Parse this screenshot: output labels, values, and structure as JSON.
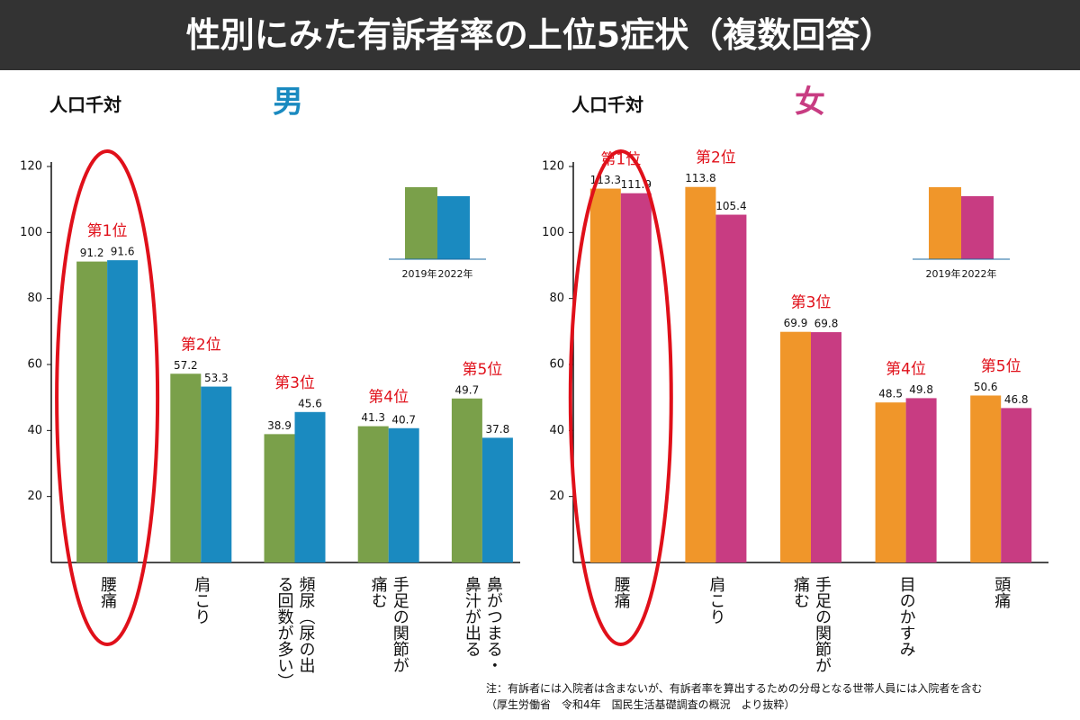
{
  "title": "性別にみた有訴者率の上位5症状（複数回答）",
  "chart_data": [
    {
      "type": "bar",
      "title": "男",
      "title_color": "#1a8ac0",
      "y_label": "人口千対",
      "categories": [
        "腰痛",
        "肩こり",
        "頻尿（尿の出る回数が多い）",
        "手足の関節が痛む",
        "鼻がつまる・鼻汁が出る"
      ],
      "rank_labels": [
        "第1位",
        "第2位",
        "第3位",
        "第4位",
        "第5位"
      ],
      "series": [
        {
          "name": "2019年",
          "color": "#7aa04a",
          "values": [
            91.2,
            57.2,
            38.9,
            41.3,
            49.7
          ]
        },
        {
          "name": "2022年",
          "color": "#1a8ac0",
          "values": [
            91.6,
            53.3,
            45.6,
            40.7,
            37.8
          ]
        }
      ],
      "ylim": [
        0,
        120
      ],
      "yticks": [
        20,
        40,
        60,
        80,
        100,
        120
      ]
    },
    {
      "type": "bar",
      "title": "女",
      "title_color": "#c83c82",
      "y_label": "人口千対",
      "categories": [
        "腰痛",
        "肩こり",
        "手足の関節が痛む",
        "目のかすみ",
        "頭痛"
      ],
      "rank_labels": [
        "第1位",
        "第2位",
        "第3位",
        "第4位",
        "第5位"
      ],
      "series": [
        {
          "name": "2019年",
          "color": "#f0962a",
          "values": [
            113.3,
            113.8,
            69.9,
            48.5,
            50.6
          ]
        },
        {
          "name": "2022年",
          "color": "#c83c82",
          "values": [
            111.9,
            105.4,
            69.8,
            49.8,
            46.8
          ]
        }
      ],
      "ylim": [
        0,
        120
      ],
      "yticks": [
        20,
        40,
        60,
        80,
        100,
        120
      ]
    }
  ],
  "notes": [
    "注：有訴者には入院者は含まないが、有訴者率を算出するための分母となる世帯人員には入院者を含む",
    "（厚生労働省　令和4年　国民生活基礎調査の概況　より抜粋）"
  ]
}
